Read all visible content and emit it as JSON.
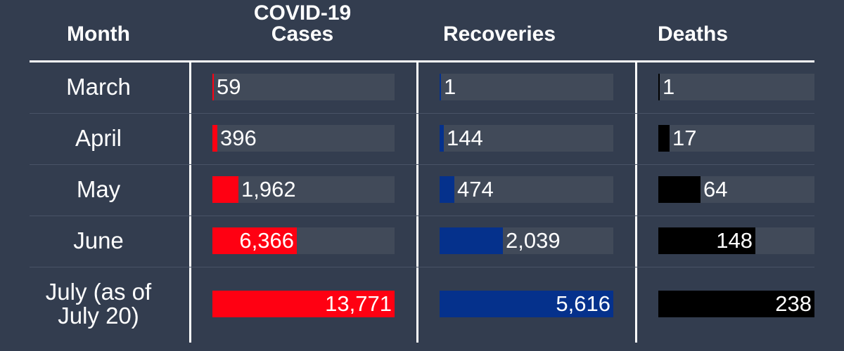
{
  "headers": {
    "month": "Month",
    "cases_line1": "COVID-19",
    "cases_line2": "Cases",
    "recoveries": "Recoveries",
    "deaths": "Deaths"
  },
  "colors": {
    "background": "#333d4f",
    "cases": "#ff0012",
    "recoveries": "#05318c",
    "deaths": "#000000",
    "track": "#414a59"
  },
  "chart_data": {
    "type": "table",
    "columns": [
      "Month",
      "COVID-19 Cases",
      "Recoveries",
      "Deaths"
    ],
    "rows": [
      {
        "month": "March",
        "cases": 59,
        "recoveries": 1,
        "deaths": 1,
        "cases_label": "59",
        "recoveries_label": "1",
        "deaths_label": "1"
      },
      {
        "month": "April",
        "cases": 396,
        "recoveries": 144,
        "deaths": 17,
        "cases_label": "396",
        "recoveries_label": "144",
        "deaths_label": "17"
      },
      {
        "month": "May",
        "cases": 1962,
        "recoveries": 474,
        "deaths": 64,
        "cases_label": "1,962",
        "recoveries_label": "474",
        "deaths_label": "64"
      },
      {
        "month": "June",
        "cases": 6366,
        "recoveries": 2039,
        "deaths": 148,
        "cases_label": "6,366",
        "recoveries_label": "2,039",
        "deaths_label": "148"
      },
      {
        "month_line1": "July (as of",
        "month_line2": "July 20)",
        "cases": 13771,
        "recoveries": 5616,
        "deaths": 238,
        "cases_label": "13,771",
        "recoveries_label": "5,616",
        "deaths_label": "238"
      }
    ],
    "max": {
      "cases": 13771,
      "recoveries": 5616,
      "deaths": 238
    }
  }
}
